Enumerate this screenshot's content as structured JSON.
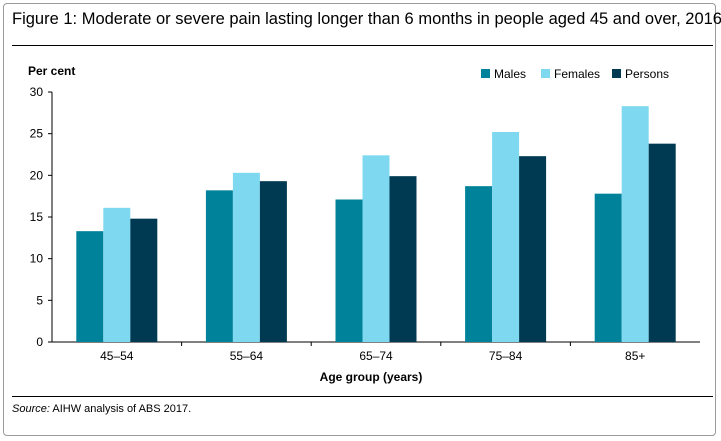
{
  "title": "Figure 1: Moderate or severe pain lasting longer than 6 months in people aged 45 and over, 2016",
  "source_label": "Source:",
  "source_text": " AIHW analysis of ABS 2017.",
  "colors": {
    "Males": "#00839a",
    "Females": "#7dd8f0",
    "Persons": "#003a52"
  },
  "chart_data": {
    "type": "bar",
    "title": "Figure 1: Moderate or severe pain lasting longer than 6 months in people aged 45 and over, 2016",
    "xlabel": "Age group (years)",
    "ylabel": "Per cent",
    "ylim": [
      0,
      30
    ],
    "yticks": [
      0,
      5,
      10,
      15,
      20,
      25,
      30
    ],
    "grid": false,
    "legend_position": "top-right",
    "categories": [
      "45–54",
      "55–64",
      "65–74",
      "75–84",
      "85+"
    ],
    "series": [
      {
        "name": "Males",
        "values": [
          13.3,
          18.2,
          17.1,
          18.7,
          17.8
        ]
      },
      {
        "name": "Females",
        "values": [
          16.1,
          20.3,
          22.4,
          25.2,
          28.3
        ]
      },
      {
        "name": "Persons",
        "values": [
          14.8,
          19.3,
          19.9,
          22.3,
          23.8
        ]
      }
    ]
  }
}
